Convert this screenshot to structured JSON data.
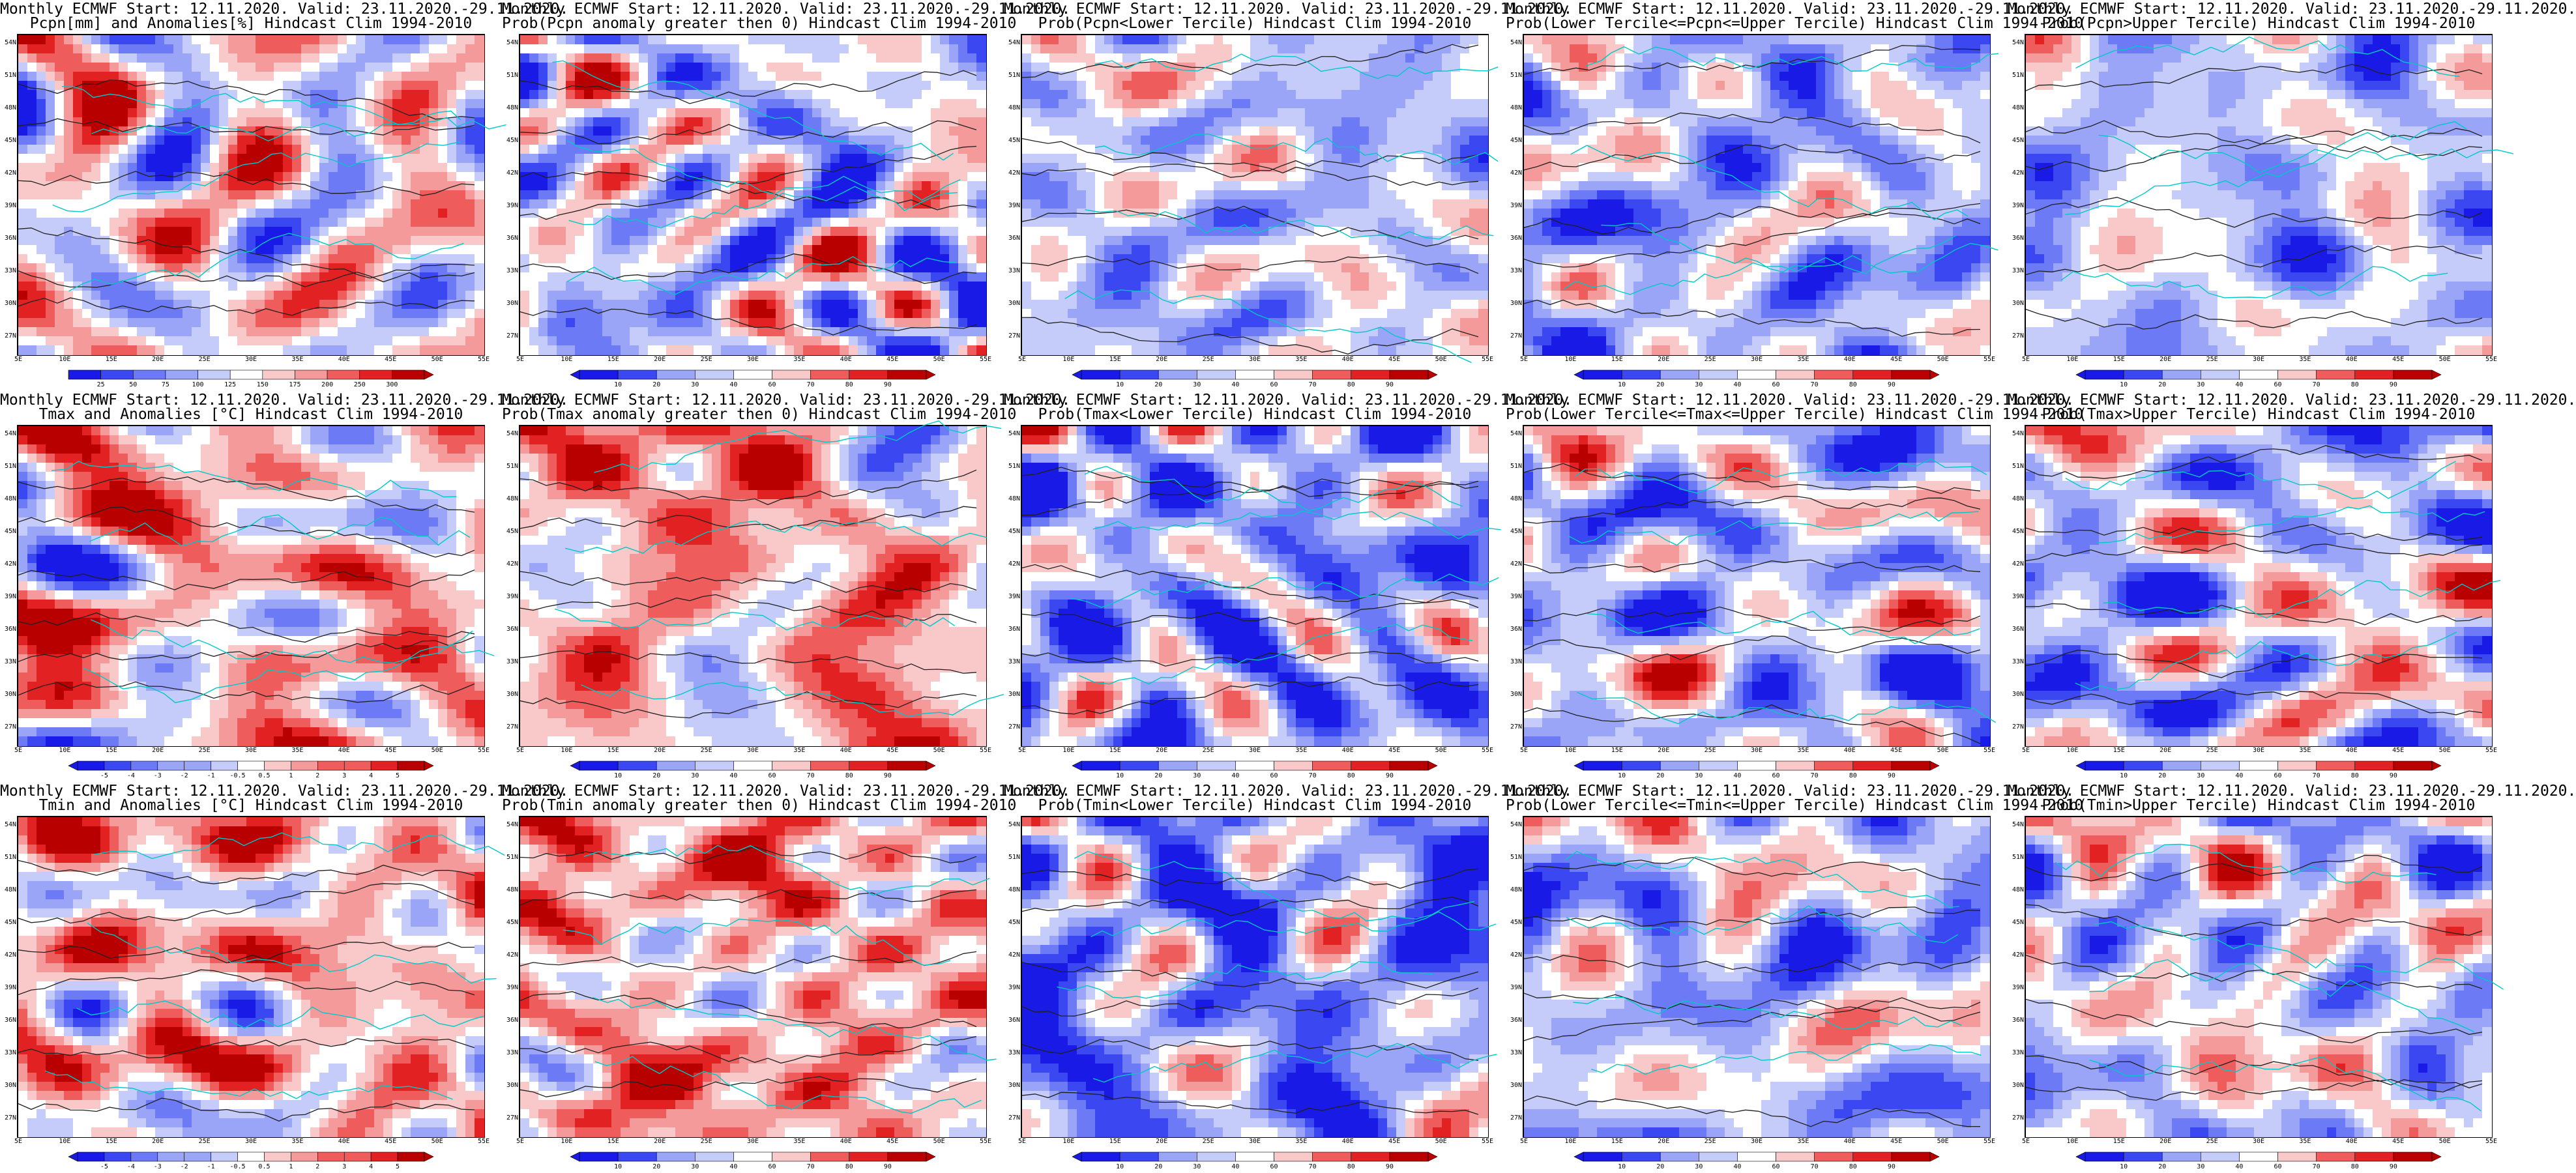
{
  "palettes": {
    "bwr": [
      "#1a1ae6",
      "#3b47f0",
      "#6c7af5",
      "#9ba5f7",
      "#c6ccfa",
      "#ffffff",
      "#f9c8c8",
      "#f59a9a",
      "#ee5c5c",
      "#e22222",
      "#b80000"
    ],
    "clim_accent": "#00c8c8",
    "contour": "#202020"
  },
  "lat_labels": [
    "54N",
    "51N",
    "48N",
    "45N",
    "42N",
    "39N",
    "36N",
    "33N",
    "30N",
    "27N"
  ],
  "lon_labels": [
    "5E",
    "10E",
    "15E",
    "20E",
    "25E",
    "30E",
    "35E",
    "40E",
    "45E",
    "50E",
    "55E"
  ],
  "colorbars": {
    "pcpn": {
      "labels": [
        "25",
        "50",
        "75",
        "100",
        "125",
        "150",
        "175",
        "200",
        "250",
        "300"
      ],
      "arrows": "right"
    },
    "prob": {
      "labels": [
        "10",
        "20",
        "30",
        "40",
        "60",
        "70",
        "80",
        "90"
      ],
      "arrows": "both"
    },
    "temp": {
      "labels": [
        "-5",
        "-4",
        "-3",
        "-2",
        "-1",
        "-0.5",
        "0.5",
        "1",
        "2",
        "3",
        "4",
        "5"
      ],
      "arrows": "both"
    }
  },
  "panels": [
    {
      "id": "p0",
      "title1": "Monthly ECMWF Start: 12.11.2020. Valid: 23.11.2020.-29.11.2020.",
      "title2": "Pcpn[mm] and Anomalies[%] Hindcast Clim 1994-2010",
      "cbar": "pcpn",
      "bias": 0.05,
      "seed": 11
    },
    {
      "id": "p1",
      "title1": "Monthly ECMWF Start: 12.11.2020. Valid: 23.11.2020.-29.11.2020.",
      "title2": "Prob(Pcpn anomaly greater then 0) Hindcast Clim 1994-2010",
      "cbar": "prob",
      "bias": -0.25,
      "seed": 12
    },
    {
      "id": "p2",
      "title1": "Monthly ECMWF Start: 12.11.2020. Valid: 23.11.2020.-29.11.2020.",
      "title2": "Prob(Pcpn<Lower Tercile) Hindcast Clim 1994-2010",
      "cbar": "prob",
      "bias": -0.3,
      "seed": 13
    },
    {
      "id": "p3",
      "title1": "Monthly ECMWF Start: 12.11.2020. Valid: 23.11.2020.-29.11.2020.",
      "title2": "Prob(Lower Tercile<=Pcpn<=Upper Tercile) Hindcast Clim 1994-2010",
      "cbar": "prob",
      "bias": -0.45,
      "seed": 14
    },
    {
      "id": "p4",
      "title1": "Monthly ECMWF Start: 12.11.2020. Valid: 23.11.2020.-29.11.2020.",
      "title2": "Prob(Pcpn>Upper Tercile) Hindcast Clim 1994-2010",
      "cbar": "prob",
      "bias": -0.35,
      "seed": 15
    },
    {
      "id": "p5",
      "title1": "Monthly ECMWF Start: 12.11.2020. Valid: 23.11.2020.-29.11.2020.",
      "title2": "Tmax and Anomalies [°C] Hindcast Clim 1994-2010",
      "cbar": "temp",
      "bias": 0.3,
      "seed": 21
    },
    {
      "id": "p6",
      "title1": "Monthly ECMWF Start: 12.11.2020. Valid: 23.11.2020.-29.11.2020.",
      "title2": "Prob(Tmax anomaly greater then 0) Hindcast Clim 1994-2010",
      "cbar": "prob",
      "bias": 0.4,
      "seed": 22
    },
    {
      "id": "p7",
      "title1": "Monthly ECMWF Start: 12.11.2020. Valid: 23.11.2020.-29.11.2020.",
      "title2": "Prob(Tmax<Lower Tercile) Hindcast Clim 1994-2010",
      "cbar": "prob",
      "bias": -0.6,
      "seed": 23
    },
    {
      "id": "p8",
      "title1": "Monthly ECMWF Start: 12.11.2020. Valid: 23.11.2020.-29.11.2020.",
      "title2": "Prob(Lower Tercile<=Tmax<=Upper Tercile) Hindcast Clim 1994-2010",
      "cbar": "prob",
      "bias": -0.35,
      "seed": 24
    },
    {
      "id": "p9",
      "title1": "Monthly ECMWF Start: 12.11.2020. Valid: 23.11.2020.-29.11.2020.",
      "title2": "Prob(Tmax>Upper Tercile) Hindcast Clim 1994-2010",
      "cbar": "prob",
      "bias": -0.3,
      "seed": 25
    },
    {
      "id": "p10",
      "title1": "Monthly ECMWF Start: 12.11.2020. Valid: 23.11.2020.-29.11.2020.",
      "title2": "Tmin and Anomalies [°C] Hindcast Clim 1994-2010",
      "cbar": "temp",
      "bias": 0.35,
      "seed": 31
    },
    {
      "id": "p11",
      "title1": "Monthly ECMWF Start: 12.11.2020. Valid: 23.11.2020.-29.11.2020.",
      "title2": "Prob(Tmin anomaly greater then 0) Hindcast Clim 1994-2010",
      "cbar": "prob",
      "bias": 0.45,
      "seed": 32
    },
    {
      "id": "p12",
      "title1": "Monthly ECMWF Start: 12.11.2020. Valid: 23.11.2020.-29.11.2020.",
      "title2": "Prob(Tmin<Lower Tercile) Hindcast Clim 1994-2010",
      "cbar": "prob",
      "bias": -0.65,
      "seed": 33
    },
    {
      "id": "p13",
      "title1": "Monthly ECMWF Start: 12.11.2020. Valid: 23.11.2020.-29.11.2020.",
      "title2": "Prob(Lower Tercile<=Tmin<=Upper Tercile) Hindcast Clim 1994-2010",
      "cbar": "prob",
      "bias": -0.35,
      "seed": 34
    },
    {
      "id": "p14",
      "title1": "Monthly ECMWF Start: 12.11.2020. Valid: 23.11.2020.-29.11.2020.",
      "title2": "Prob(Tmin>Upper Tercile) Hindcast Clim 1994-2010",
      "cbar": "prob",
      "bias": -0.2,
      "seed": 35
    }
  ]
}
